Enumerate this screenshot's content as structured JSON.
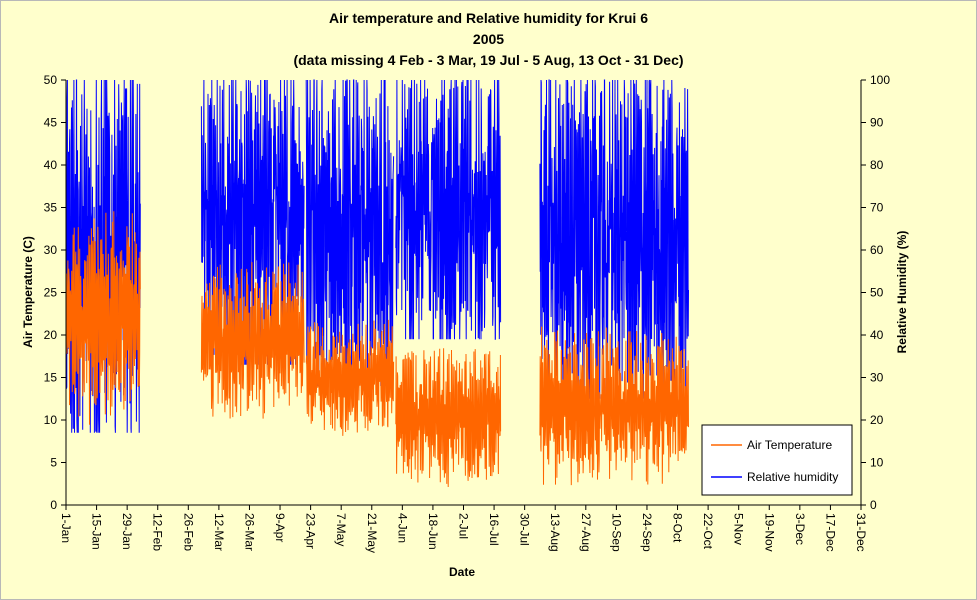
{
  "chart_data": {
    "type": "line",
    "title": "Air temperature and Relative humidity for Krui 6",
    "subtitle": "2005",
    "subtitle2": "(data missing 4 Feb - 3 Mar, 19 Jul - 5 Aug, 13 Oct - 31 Dec)",
    "xlabel": "Date",
    "ylabel_left": "Air Temperature (C)",
    "ylabel_right": "Relative Humidity (%)",
    "ylim_left": [
      0,
      50
    ],
    "ylim_right": [
      0,
      100
    ],
    "yticks_left": [
      "0",
      "5",
      "10",
      "15",
      "20",
      "25",
      "30",
      "35",
      "40",
      "45",
      "50"
    ],
    "yticks_right": [
      "0",
      "10",
      "20",
      "30",
      "40",
      "50",
      "60",
      "70",
      "80",
      "90",
      "100"
    ],
    "xlim": [
      "1-Jan",
      "31-Dec"
    ],
    "xticks": [
      "1-Jan",
      "15-Jan",
      "29-Jan",
      "12-Feb",
      "26-Feb",
      "12-Mar",
      "26-Mar",
      "9-Apr",
      "23-Apr",
      "7-May",
      "21-May",
      "4-Jun",
      "18-Jun",
      "2-Jul",
      "16-Jul",
      "30-Jul",
      "13-Aug",
      "27-Aug",
      "10-Sep",
      "24-Sep",
      "8-Oct",
      "22-Oct",
      "5-Nov",
      "19-Nov",
      "3-Dec",
      "17-Dec",
      "31-Dec"
    ],
    "grid": false,
    "legend_position": "bottom-right",
    "missing_periods": [
      [
        "4 Feb",
        "3 Mar"
      ],
      [
        "19 Jul",
        "5 Aug"
      ],
      [
        "13 Oct",
        "31 Dec"
      ]
    ],
    "series": [
      {
        "name": "Air Temperature",
        "axis": "left",
        "color": "#ff6600",
        "approx_daily_range": [
          {
            "period": "1-Jan to 3-Feb",
            "min": 9,
            "max": 35
          },
          {
            "period": "4-Mar to 20-Apr",
            "min": 10,
            "max": 29
          },
          {
            "period": "21-Apr to 31-May",
            "min": 8,
            "max": 22
          },
          {
            "period": "1-Jun to 18-Jul",
            "min": 2,
            "max": 19
          },
          {
            "period": "6-Aug to 12-Oct",
            "min": 2,
            "max": 21
          }
        ]
      },
      {
        "name": "Relative humidity",
        "axis": "right",
        "color": "#0000ff",
        "approx_daily_range": [
          {
            "period": "1-Jan to 3-Feb",
            "min": 17,
            "max": 100
          },
          {
            "period": "4-Mar to 20-Apr",
            "min": 33,
            "max": 100
          },
          {
            "period": "21-Apr to 31-May",
            "min": 28,
            "max": 100
          },
          {
            "period": "1-Jun to 18-Jul",
            "min": 39,
            "max": 100
          },
          {
            "period": "6-Aug to 12-Oct",
            "min": 25,
            "max": 100
          }
        ]
      }
    ]
  }
}
